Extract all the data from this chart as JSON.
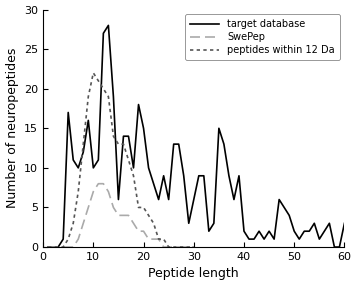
{
  "title": "",
  "xlabel": "Peptide length",
  "ylabel": "Number of neuropeptides",
  "xlim": [
    0,
    60
  ],
  "ylim": [
    0,
    30
  ],
  "xticks": [
    0,
    10,
    20,
    30,
    40,
    50,
    60
  ],
  "yticks": [
    0,
    5,
    10,
    15,
    20,
    25,
    30
  ],
  "target_database": {
    "x": [
      1,
      2,
      3,
      4,
      5,
      6,
      7,
      8,
      9,
      10,
      11,
      12,
      13,
      14,
      15,
      16,
      17,
      18,
      19,
      20,
      21,
      22,
      23,
      24,
      25,
      26,
      27,
      28,
      29,
      30,
      31,
      32,
      33,
      34,
      35,
      36,
      37,
      38,
      39,
      40,
      41,
      42,
      43,
      44,
      45,
      46,
      47,
      48,
      49,
      50,
      51,
      52,
      53,
      54,
      55,
      56,
      57,
      58,
      59,
      60
    ],
    "y": [
      0,
      0,
      0,
      1,
      17,
      11,
      10,
      12,
      16,
      10,
      11,
      27,
      28,
      19,
      6,
      14,
      14,
      10,
      18,
      15,
      10,
      8,
      6,
      9,
      6,
      13,
      13,
      9,
      3,
      6,
      9,
      9,
      2,
      3,
      15,
      13,
      9,
      6,
      9,
      2,
      1,
      1,
      2,
      1,
      2,
      1,
      6,
      5,
      4,
      2,
      1,
      2,
      2,
      3,
      1,
      2,
      3,
      0,
      0,
      3
    ],
    "color": "#000000",
    "linestyle": "solid",
    "linewidth": 1.2,
    "label": "target database"
  },
  "swepep": {
    "x": [
      1,
      2,
      3,
      4,
      5,
      6,
      7,
      8,
      9,
      10,
      11,
      12,
      13,
      14,
      15,
      16,
      17,
      18,
      19,
      20,
      21,
      22,
      23,
      24,
      25,
      26,
      27,
      28,
      29,
      30
    ],
    "y": [
      0,
      0,
      0,
      0,
      0,
      0,
      1,
      3,
      5,
      7,
      8,
      8,
      7,
      5,
      4,
      4,
      4,
      3,
      2,
      2,
      1,
      1,
      1,
      0,
      0,
      0,
      0,
      0,
      0,
      0
    ],
    "color": "#aaaaaa",
    "linestyle": "dashed",
    "linewidth": 1.2,
    "label": "SwePep",
    "dashes": [
      6,
      3
    ]
  },
  "peptides_within_12da": {
    "x": [
      1,
      2,
      3,
      4,
      5,
      6,
      7,
      8,
      9,
      10,
      11,
      12,
      13,
      14,
      15,
      16,
      17,
      18,
      19,
      20,
      21,
      22,
      23,
      24,
      25,
      26,
      27,
      28,
      29,
      30
    ],
    "y": [
      0,
      0,
      0,
      0,
      1,
      3,
      7,
      13,
      19,
      22,
      21,
      20,
      19,
      14,
      13,
      13,
      11,
      9,
      5,
      5,
      4,
      3,
      1,
      1,
      0,
      0,
      0,
      0,
      0,
      0
    ],
    "color": "#555555",
    "linestyle": "dashed",
    "linewidth": 1.2,
    "label": "peptides within 12 Da",
    "dashes": [
      2,
      2
    ]
  },
  "legend_loc": "upper right",
  "figsize": [
    3.57,
    2.86
  ],
  "dpi": 100
}
